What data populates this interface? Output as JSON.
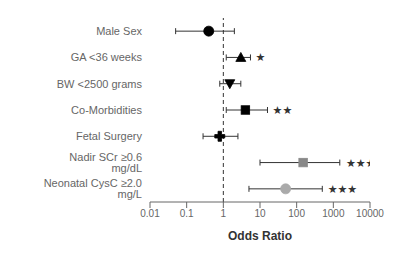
{
  "chart_data": {
    "type": "forest",
    "xlabel": "Odds Ratio",
    "categories": [
      "Male Sex",
      "GA <36 weeks",
      "BW <2500 grams",
      "Co-Morbidities",
      "Fetal Surgery",
      "Nadir SCr ≥0.6 mg/dL",
      "Neonatal CysC ≥2.0 mg/L"
    ],
    "values": [
      0.4,
      3.0,
      1.5,
      4.0,
      0.8,
      150.0,
      50.0
    ],
    "ci_low": [
      0.05,
      1.2,
      0.8,
      1.2,
      0.28,
      10.0,
      5.0
    ],
    "ci_high": [
      2.0,
      5.5,
      3.0,
      16.0,
      2.5,
      1500.0,
      500.0
    ],
    "markers": [
      "circle",
      "triangle_up",
      "triangle_down",
      "square",
      "plus",
      "square",
      "circle"
    ],
    "colors": [
      "black",
      "black",
      "black",
      "black",
      "black",
      "#888888",
      "#aaaaaa"
    ],
    "log": "x",
    "xlim": [
      0.01,
      10000
    ],
    "xticks": [
      0.01,
      0.1,
      1,
      10,
      100,
      1000,
      10000
    ],
    "reference_x": 1,
    "annotations": [
      {
        "category": "GA <36 weeks",
        "x": 7.5,
        "text": "★"
      },
      {
        "category": "Co-Morbidities",
        "x": 22.0,
        "text": "★★"
      },
      {
        "category": "Nadir SCr ≥0.6 mg/dL",
        "x": 2200.0,
        "text": "★★★"
      },
      {
        "category": "Neonatal CysC ≥2.0 mg/L",
        "x": 700.0,
        "text": "★★★"
      }
    ],
    "grid": false
  }
}
